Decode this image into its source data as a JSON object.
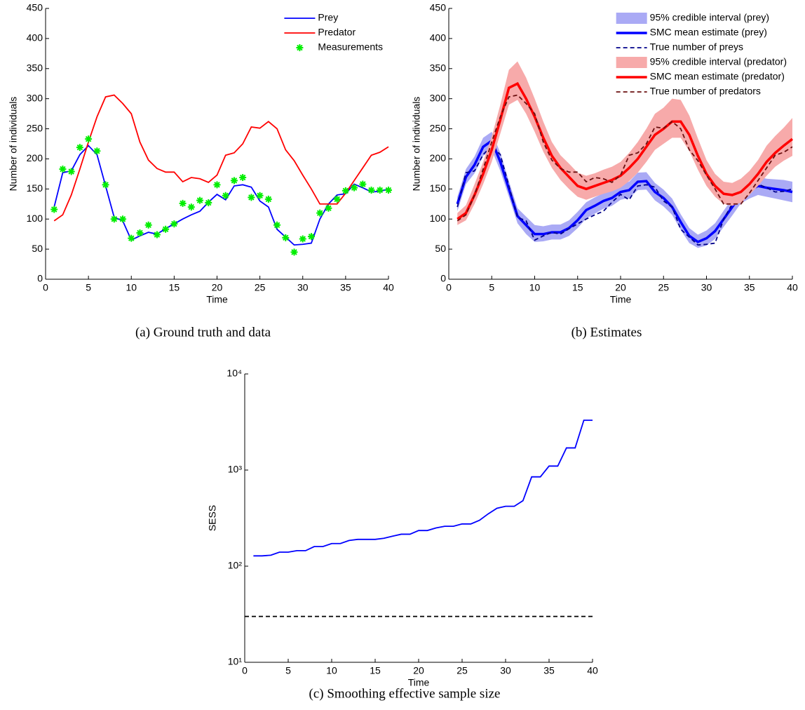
{
  "chart_data": [
    {
      "type": "line",
      "caption": "(a) Ground truth and data",
      "xlabel": "Time",
      "ylabel": "Number of individuals",
      "x": [
        1,
        2,
        3,
        4,
        5,
        6,
        7,
        8,
        9,
        10,
        11,
        12,
        13,
        14,
        15,
        16,
        17,
        18,
        19,
        20,
        21,
        22,
        23,
        24,
        25,
        26,
        27,
        28,
        29,
        30,
        31,
        32,
        33,
        34,
        35,
        36,
        37,
        38,
        39,
        40
      ],
      "xlim": [
        0,
        40
      ],
      "xticks": [
        0,
        5,
        10,
        15,
        20,
        25,
        30,
        35,
        40
      ],
      "ylim": [
        0,
        450
      ],
      "yticks": [
        0,
        50,
        100,
        150,
        200,
        250,
        300,
        350,
        400,
        450
      ],
      "legend": "upper right",
      "series": [
        {
          "name": "Prey",
          "color": "#0000ff",
          "style": "line",
          "values": [
            120,
            177,
            180,
            207,
            222,
            207,
            155,
            103,
            97,
            65,
            72,
            78,
            75,
            84,
            92,
            100,
            107,
            113,
            128,
            141,
            132,
            155,
            157,
            153,
            130,
            120,
            83,
            70,
            57,
            58,
            60,
            100,
            125,
            140,
            142,
            158,
            152,
            145,
            146,
            150
          ]
        },
        {
          "name": "Predator",
          "color": "#ff0000",
          "style": "line",
          "values": [
            97,
            107,
            140,
            183,
            228,
            270,
            303,
            306,
            292,
            275,
            228,
            198,
            184,
            178,
            178,
            162,
            169,
            167,
            161,
            173,
            206,
            210,
            225,
            253,
            251,
            262,
            250,
            215,
            197,
            173,
            150,
            125,
            125,
            125,
            143,
            164,
            185,
            206,
            211,
            220
          ]
        },
        {
          "name": "Measurements",
          "color": "#00ee00",
          "style": "marker",
          "values": [
            116,
            183,
            179,
            219,
            233,
            213,
            157,
            100,
            100,
            68,
            77,
            90,
            74,
            83,
            92,
            126,
            120,
            131,
            127,
            157,
            139,
            164,
            169,
            136,
            139,
            133,
            90,
            69,
            45,
            67,
            71,
            110,
            118,
            133,
            147,
            152,
            158,
            148,
            148,
            148
          ]
        }
      ]
    },
    {
      "type": "line",
      "caption": "(b) Estimates",
      "xlabel": "Time",
      "ylabel": "Number of individuals",
      "x": [
        1,
        2,
        3,
        4,
        5,
        6,
        7,
        8,
        9,
        10,
        11,
        12,
        13,
        14,
        15,
        16,
        17,
        18,
        19,
        20,
        21,
        22,
        23,
        24,
        25,
        26,
        27,
        28,
        29,
        30,
        31,
        32,
        33,
        34,
        35,
        36,
        37,
        38,
        39,
        40
      ],
      "xlim": [
        0,
        40
      ],
      "xticks": [
        0,
        5,
        10,
        15,
        20,
        25,
        30,
        35,
        40
      ],
      "ylim": [
        0,
        450
      ],
      "yticks": [
        0,
        50,
        100,
        150,
        200,
        250,
        300,
        350,
        400,
        450
      ],
      "legend": "upper right",
      "series": [
        {
          "name": "95% credible interval (prey)",
          "color": "#aaaaf5",
          "style": "band",
          "lower": [
            113,
            158,
            176,
            205,
            215,
            180,
            137,
            93,
            75,
            62,
            63,
            66,
            66,
            72,
            85,
            101,
            109,
            117,
            122,
            132,
            135,
            148,
            149,
            131,
            121,
            107,
            82,
            60,
            52,
            56,
            67,
            87,
            106,
            126,
            134,
            140,
            137,
            134,
            131,
            128
          ],
          "upper": [
            137,
            183,
            204,
            235,
            245,
            210,
            163,
            118,
            104,
            90,
            88,
            91,
            91,
            98,
            112,
            128,
            136,
            143,
            148,
            159,
            162,
            177,
            178,
            160,
            149,
            134,
            108,
            85,
            74,
            81,
            93,
            114,
            134,
            154,
            162,
            170,
            167,
            166,
            165,
            162
          ]
        },
        {
          "name": "SMC mean estimate (prey)",
          "color": "#0000ff",
          "style": "thick",
          "values": [
            125,
            170,
            190,
            220,
            230,
            195,
            150,
            105,
            90,
            75,
            75,
            78,
            78,
            85,
            98,
            115,
            122,
            130,
            135,
            145,
            148,
            162,
            163,
            145,
            135,
            120,
            95,
            72,
            62,
            68,
            80,
            100,
            120,
            140,
            148,
            155,
            152,
            150,
            148,
            145
          ]
        },
        {
          "name": "True number of preys",
          "color": "#00008b",
          "style": "dashed",
          "values": [
            120,
            177,
            180,
            207,
            222,
            207,
            155,
            103,
            97,
            65,
            72,
            78,
            75,
            84,
            92,
            100,
            107,
            113,
            128,
            141,
            132,
            155,
            157,
            153,
            130,
            120,
            83,
            70,
            57,
            58,
            60,
            100,
            125,
            140,
            142,
            158,
            152,
            145,
            146,
            150
          ]
        },
        {
          "name": "95% credible interval (predator)",
          "color": "#f7aaaa",
          "style": "band",
          "lower": [
            90,
            98,
            125,
            158,
            195,
            242,
            290,
            298,
            275,
            245,
            212,
            185,
            165,
            150,
            137,
            132,
            137,
            142,
            146,
            152,
            163,
            177,
            195,
            215,
            225,
            235,
            235,
            213,
            182,
            155,
            137,
            125,
            122,
            127,
            140,
            155,
            172,
            187,
            197,
            205
          ],
          "upper": [
            110,
            123,
            158,
            195,
            237,
            290,
            348,
            362,
            335,
            300,
            262,
            228,
            206,
            192,
            177,
            172,
            176,
            182,
            187,
            195,
            210,
            228,
            250,
            275,
            285,
            300,
            298,
            272,
            234,
            198,
            175,
            162,
            160,
            167,
            180,
            198,
            222,
            238,
            252,
            268
          ]
        },
        {
          "name": "SMC mean estimate (predator)",
          "color": "#ff0000",
          "style": "thick",
          "values": [
            100,
            110,
            140,
            175,
            215,
            265,
            318,
            325,
            300,
            270,
            235,
            205,
            185,
            170,
            155,
            150,
            155,
            160,
            165,
            172,
            185,
            200,
            220,
            240,
            250,
            262,
            262,
            240,
            205,
            175,
            155,
            142,
            140,
            145,
            158,
            175,
            195,
            210,
            222,
            233
          ]
        },
        {
          "name": "True number of predators",
          "color": "#6b1010",
          "style": "dashed",
          "values": [
            97,
            107,
            140,
            183,
            228,
            270,
            303,
            306,
            292,
            275,
            228,
            198,
            184,
            178,
            178,
            162,
            169,
            167,
            161,
            173,
            206,
            210,
            225,
            253,
            251,
            262,
            250,
            215,
            197,
            173,
            150,
            125,
            125,
            125,
            143,
            164,
            185,
            206,
            211,
            220
          ]
        }
      ]
    },
    {
      "type": "line",
      "caption": "(c) Smoothing effective sample size",
      "xlabel": "Time",
      "ylabel": "SESS",
      "x": [
        1,
        2,
        3,
        4,
        5,
        6,
        7,
        8,
        9,
        10,
        11,
        12,
        13,
        14,
        15,
        16,
        17,
        18,
        19,
        20,
        21,
        22,
        23,
        24,
        25,
        26,
        27,
        28,
        29,
        30,
        31,
        32,
        33,
        34,
        35,
        36,
        37,
        38,
        39,
        40
      ],
      "xlim": [
        0,
        40
      ],
      "xticks": [
        0,
        5,
        10,
        15,
        20,
        25,
        30,
        35,
        40
      ],
      "yscale": "log",
      "ylim": [
        10,
        10000
      ],
      "yticks": [
        {
          "value": 10,
          "label": "10¹"
        },
        {
          "value": 100,
          "label": "10²"
        },
        {
          "value": 1000,
          "label": "10³"
        },
        {
          "value": 10000,
          "label": "10⁴"
        }
      ],
      "series": [
        {
          "color": "#0000ff",
          "style": "line",
          "values": [
            128,
            128,
            130,
            140,
            140,
            145,
            145,
            160,
            160,
            172,
            172,
            185,
            190,
            190,
            190,
            195,
            205,
            215,
            215,
            235,
            235,
            250,
            260,
            260,
            275,
            275,
            300,
            350,
            400,
            420,
            420,
            480,
            850,
            850,
            1100,
            1100,
            1700,
            1700,
            3300,
            3300
          ]
        }
      ],
      "reference_line": {
        "value": 30,
        "color": "#000000",
        "style": "dashed"
      }
    }
  ]
}
